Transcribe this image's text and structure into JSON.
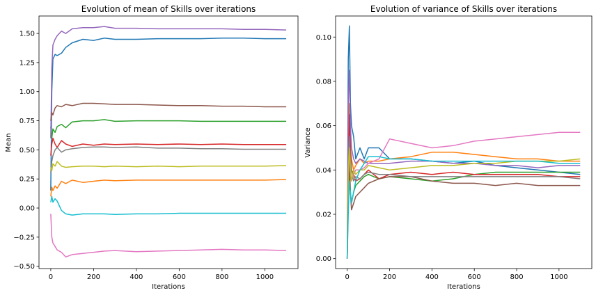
{
  "chart_data": [
    {
      "type": "line",
      "title": "Evolution of mean of Skills over iterations",
      "xlabel": "Iterations",
      "ylabel": "Mean",
      "xlim": [
        -55,
        1155
      ],
      "ylim": [
        -0.52,
        1.65
      ],
      "xticks": [
        0,
        200,
        400,
        600,
        800,
        1000
      ],
      "yticks": [
        -0.5,
        -0.25,
        0.0,
        0.25,
        0.5,
        0.75,
        1.0,
        1.25,
        1.5
      ],
      "ytick_labels": [
        "−0.50",
        "−0.25",
        "0.00",
        "0.25",
        "0.50",
        "0.75",
        "1.00",
        "1.25",
        "1.50"
      ],
      "grid": false,
      "series": [
        {
          "color": "#1f77b4",
          "x": [
            0,
            5,
            10,
            20,
            30,
            50,
            70,
            100,
            150,
            200,
            250,
            300,
            400,
            500,
            600,
            700,
            800,
            900,
            1000,
            1100
          ],
          "y": [
            0.15,
            1.0,
            1.28,
            1.32,
            1.31,
            1.33,
            1.38,
            1.42,
            1.45,
            1.44,
            1.46,
            1.45,
            1.45,
            1.455,
            1.455,
            1.455,
            1.46,
            1.46,
            1.455,
            1.455
          ]
        },
        {
          "color": "#ff7f0e",
          "x": [
            0,
            5,
            10,
            20,
            30,
            50,
            70,
            100,
            150,
            200,
            250,
            300,
            400,
            500,
            600,
            700,
            800,
            900,
            1000,
            1100
          ],
          "y": [
            0.1,
            0.18,
            0.15,
            0.19,
            0.17,
            0.23,
            0.21,
            0.24,
            0.22,
            0.23,
            0.24,
            0.235,
            0.24,
            0.24,
            0.24,
            0.24,
            0.24,
            0.24,
            0.24,
            0.245
          ]
        },
        {
          "color": "#2ca02c",
          "x": [
            0,
            5,
            10,
            20,
            30,
            50,
            70,
            100,
            150,
            200,
            250,
            300,
            400,
            500,
            600,
            700,
            800,
            900,
            1000,
            1100
          ],
          "y": [
            0.7,
            0.6,
            0.68,
            0.65,
            0.7,
            0.72,
            0.69,
            0.74,
            0.75,
            0.75,
            0.76,
            0.745,
            0.75,
            0.75,
            0.75,
            0.745,
            0.745,
            0.745,
            0.745,
            0.745
          ]
        },
        {
          "color": "#d62728",
          "x": [
            0,
            5,
            10,
            20,
            30,
            50,
            70,
            100,
            150,
            200,
            250,
            300,
            400,
            500,
            600,
            700,
            800,
            900,
            1000,
            1100
          ],
          "y": [
            0.45,
            0.55,
            0.6,
            0.55,
            0.52,
            0.58,
            0.55,
            0.53,
            0.55,
            0.54,
            0.55,
            0.545,
            0.55,
            0.545,
            0.55,
            0.545,
            0.55,
            0.545,
            0.545,
            0.545
          ]
        },
        {
          "color": "#9467bd",
          "x": [
            0,
            5,
            10,
            20,
            30,
            50,
            70,
            100,
            150,
            200,
            250,
            300,
            400,
            500,
            600,
            700,
            800,
            900,
            1000,
            1100
          ],
          "y": [
            0.6,
            1.2,
            1.4,
            1.45,
            1.48,
            1.52,
            1.5,
            1.54,
            1.55,
            1.55,
            1.56,
            1.545,
            1.545,
            1.54,
            1.54,
            1.54,
            1.54,
            1.535,
            1.535,
            1.53
          ]
        },
        {
          "color": "#8c564b",
          "x": [
            0,
            5,
            10,
            20,
            30,
            50,
            70,
            100,
            150,
            200,
            250,
            300,
            400,
            500,
            600,
            700,
            800,
            900,
            1000,
            1100
          ],
          "y": [
            0.75,
            0.82,
            0.8,
            0.86,
            0.88,
            0.87,
            0.89,
            0.88,
            0.9,
            0.9,
            0.895,
            0.89,
            0.89,
            0.885,
            0.88,
            0.88,
            0.875,
            0.875,
            0.87,
            0.87
          ]
        },
        {
          "color": "#e377c2",
          "x": [
            0,
            5,
            10,
            20,
            30,
            50,
            70,
            100,
            150,
            200,
            250,
            300,
            400,
            500,
            600,
            700,
            800,
            900,
            1000,
            1100
          ],
          "y": [
            -0.05,
            -0.25,
            -0.3,
            -0.33,
            -0.36,
            -0.38,
            -0.42,
            -0.4,
            -0.39,
            -0.38,
            -0.37,
            -0.365,
            -0.375,
            -0.37,
            -0.365,
            -0.36,
            -0.355,
            -0.36,
            -0.36,
            -0.365
          ]
        },
        {
          "color": "#7f7f7f",
          "x": [
            0,
            5,
            10,
            20,
            30,
            50,
            70,
            100,
            150,
            200,
            250,
            300,
            400,
            500,
            600,
            700,
            800,
            900,
            1000,
            1100
          ],
          "y": [
            0.3,
            0.4,
            0.45,
            0.5,
            0.52,
            0.48,
            0.5,
            0.51,
            0.52,
            0.525,
            0.525,
            0.52,
            0.525,
            0.515,
            0.515,
            0.51,
            0.51,
            0.505,
            0.505,
            0.505
          ]
        },
        {
          "color": "#bcbd22",
          "x": [
            0,
            5,
            10,
            20,
            30,
            50,
            70,
            100,
            150,
            200,
            250,
            300,
            400,
            500,
            600,
            700,
            800,
            900,
            1000,
            1100
          ],
          "y": [
            0.35,
            0.32,
            0.38,
            0.36,
            0.4,
            0.36,
            0.35,
            0.355,
            0.36,
            0.36,
            0.355,
            0.36,
            0.355,
            0.36,
            0.355,
            0.36,
            0.36,
            0.36,
            0.36,
            0.365
          ]
        },
        {
          "color": "#17becf",
          "x": [
            0,
            5,
            10,
            20,
            30,
            50,
            70,
            100,
            150,
            200,
            250,
            300,
            400,
            500,
            600,
            700,
            800,
            900,
            1000,
            1100
          ],
          "y": [
            0.05,
            0.1,
            0.05,
            0.08,
            0.06,
            -0.02,
            -0.05,
            -0.06,
            -0.05,
            -0.05,
            -0.05,
            -0.055,
            -0.05,
            -0.05,
            -0.045,
            -0.045,
            -0.045,
            -0.045,
            -0.045,
            -0.045
          ]
        }
      ]
    },
    {
      "type": "line",
      "title": "Evolution of variance of Skills over iterations",
      "xlabel": "Iterations",
      "ylabel": "Variance",
      "xlim": [
        -55,
        1155
      ],
      "ylim": [
        -0.0045,
        0.1095
      ],
      "xticks": [
        0,
        200,
        400,
        600,
        800,
        1000
      ],
      "yticks": [
        0.0,
        0.02,
        0.04,
        0.06,
        0.08,
        0.1
      ],
      "ytick_labels": [
        "0.00",
        "0.02",
        "0.04",
        "0.06",
        "0.08",
        "0.10"
      ],
      "grid": false,
      "series": [
        {
          "color": "#1f77b4",
          "x": [
            0,
            5,
            10,
            15,
            20,
            30,
            40,
            60,
            80,
            100,
            150,
            200,
            300,
            400,
            500,
            600,
            700,
            800,
            900,
            1000,
            1100
          ],
          "y": [
            0.0,
            0.09,
            0.105,
            0.07,
            0.06,
            0.055,
            0.045,
            0.05,
            0.045,
            0.05,
            0.05,
            0.045,
            0.045,
            0.044,
            0.043,
            0.044,
            0.042,
            0.041,
            0.04,
            0.039,
            0.038
          ]
        },
        {
          "color": "#ff7f0e",
          "x": [
            0,
            5,
            10,
            15,
            20,
            30,
            40,
            60,
            80,
            100,
            150,
            200,
            300,
            400,
            500,
            600,
            700,
            800,
            900,
            1000,
            1100
          ],
          "y": [
            0.0,
            0.06,
            0.07,
            0.05,
            0.045,
            0.04,
            0.042,
            0.045,
            0.043,
            0.044,
            0.044,
            0.045,
            0.046,
            0.048,
            0.048,
            0.047,
            0.046,
            0.045,
            0.045,
            0.044,
            0.044
          ]
        },
        {
          "color": "#2ca02c",
          "x": [
            0,
            5,
            10,
            15,
            20,
            30,
            40,
            60,
            80,
            100,
            150,
            200,
            300,
            400,
            500,
            600,
            700,
            800,
            900,
            1000,
            1100
          ],
          "y": [
            0.0,
            0.03,
            0.04,
            0.03,
            0.025,
            0.03,
            0.033,
            0.035,
            0.037,
            0.038,
            0.036,
            0.037,
            0.036,
            0.035,
            0.036,
            0.038,
            0.039,
            0.039,
            0.039,
            0.039,
            0.039
          ]
        },
        {
          "color": "#d62728",
          "x": [
            0,
            5,
            10,
            15,
            20,
            30,
            40,
            60,
            80,
            100,
            150,
            200,
            300,
            400,
            500,
            600,
            700,
            800,
            900,
            1000,
            1100
          ],
          "y": [
            0.0,
            0.04,
            0.065,
            0.05,
            0.04,
            0.038,
            0.035,
            0.036,
            0.038,
            0.04,
            0.036,
            0.038,
            0.039,
            0.038,
            0.039,
            0.038,
            0.038,
            0.038,
            0.038,
            0.037,
            0.037
          ]
        },
        {
          "color": "#9467bd",
          "x": [
            0,
            5,
            10,
            15,
            20,
            30,
            40,
            60,
            80,
            100,
            150,
            200,
            300,
            400,
            500,
            600,
            700,
            800,
            900,
            1000,
            1100
          ],
          "y": [
            0.0,
            0.07,
            0.085,
            0.06,
            0.05,
            0.045,
            0.043,
            0.045,
            0.044,
            0.043,
            0.043,
            0.043,
            0.044,
            0.044,
            0.043,
            0.043,
            0.042,
            0.042,
            0.041,
            0.042,
            0.042
          ]
        },
        {
          "color": "#8c564b",
          "x": [
            0,
            5,
            10,
            15,
            20,
            30,
            40,
            60,
            80,
            100,
            150,
            200,
            300,
            400,
            500,
            600,
            700,
            800,
            900,
            1000,
            1100
          ],
          "y": [
            0.0,
            0.03,
            0.045,
            0.03,
            0.022,
            0.025,
            0.028,
            0.03,
            0.032,
            0.034,
            0.036,
            0.037,
            0.037,
            0.035,
            0.034,
            0.034,
            0.033,
            0.034,
            0.033,
            0.033,
            0.033
          ]
        },
        {
          "color": "#e377c2",
          "x": [
            0,
            5,
            10,
            15,
            20,
            30,
            40,
            60,
            80,
            100,
            150,
            200,
            300,
            400,
            500,
            600,
            700,
            800,
            900,
            1000,
            1100
          ],
          "y": [
            0.0,
            0.035,
            0.05,
            0.04,
            0.035,
            0.038,
            0.04,
            0.04,
            0.041,
            0.043,
            0.045,
            0.054,
            0.052,
            0.05,
            0.051,
            0.053,
            0.054,
            0.055,
            0.056,
            0.057,
            0.057
          ]
        },
        {
          "color": "#7f7f7f",
          "x": [
            0,
            5,
            10,
            15,
            20,
            30,
            40,
            60,
            80,
            100,
            150,
            200,
            300,
            400,
            500,
            600,
            700,
            800,
            900,
            1000,
            1100
          ],
          "y": [
            0.0,
            0.04,
            0.055,
            0.045,
            0.04,
            0.035,
            0.037,
            0.036,
            0.038,
            0.039,
            0.038,
            0.038,
            0.037,
            0.037,
            0.037,
            0.037,
            0.037,
            0.037,
            0.037,
            0.037,
            0.036
          ]
        },
        {
          "color": "#bcbd22",
          "x": [
            0,
            5,
            10,
            15,
            20,
            30,
            40,
            60,
            80,
            100,
            150,
            200,
            300,
            400,
            500,
            600,
            700,
            800,
            900,
            1000,
            1100
          ],
          "y": [
            0.0,
            0.04,
            0.05,
            0.04,
            0.035,
            0.04,
            0.038,
            0.04,
            0.04,
            0.042,
            0.041,
            0.04,
            0.041,
            0.042,
            0.042,
            0.043,
            0.043,
            0.044,
            0.044,
            0.044,
            0.045
          ]
        },
        {
          "color": "#17becf",
          "x": [
            0,
            5,
            10,
            15,
            20,
            30,
            40,
            60,
            80,
            100,
            150,
            200,
            300,
            400,
            500,
            600,
            700,
            800,
            900,
            1000,
            1100
          ],
          "y": [
            0.0,
            0.02,
            0.035,
            0.03,
            0.025,
            0.03,
            0.035,
            0.04,
            0.043,
            0.046,
            0.046,
            0.045,
            0.045,
            0.044,
            0.044,
            0.044,
            0.044,
            0.044,
            0.044,
            0.043,
            0.043
          ]
        }
      ]
    }
  ]
}
